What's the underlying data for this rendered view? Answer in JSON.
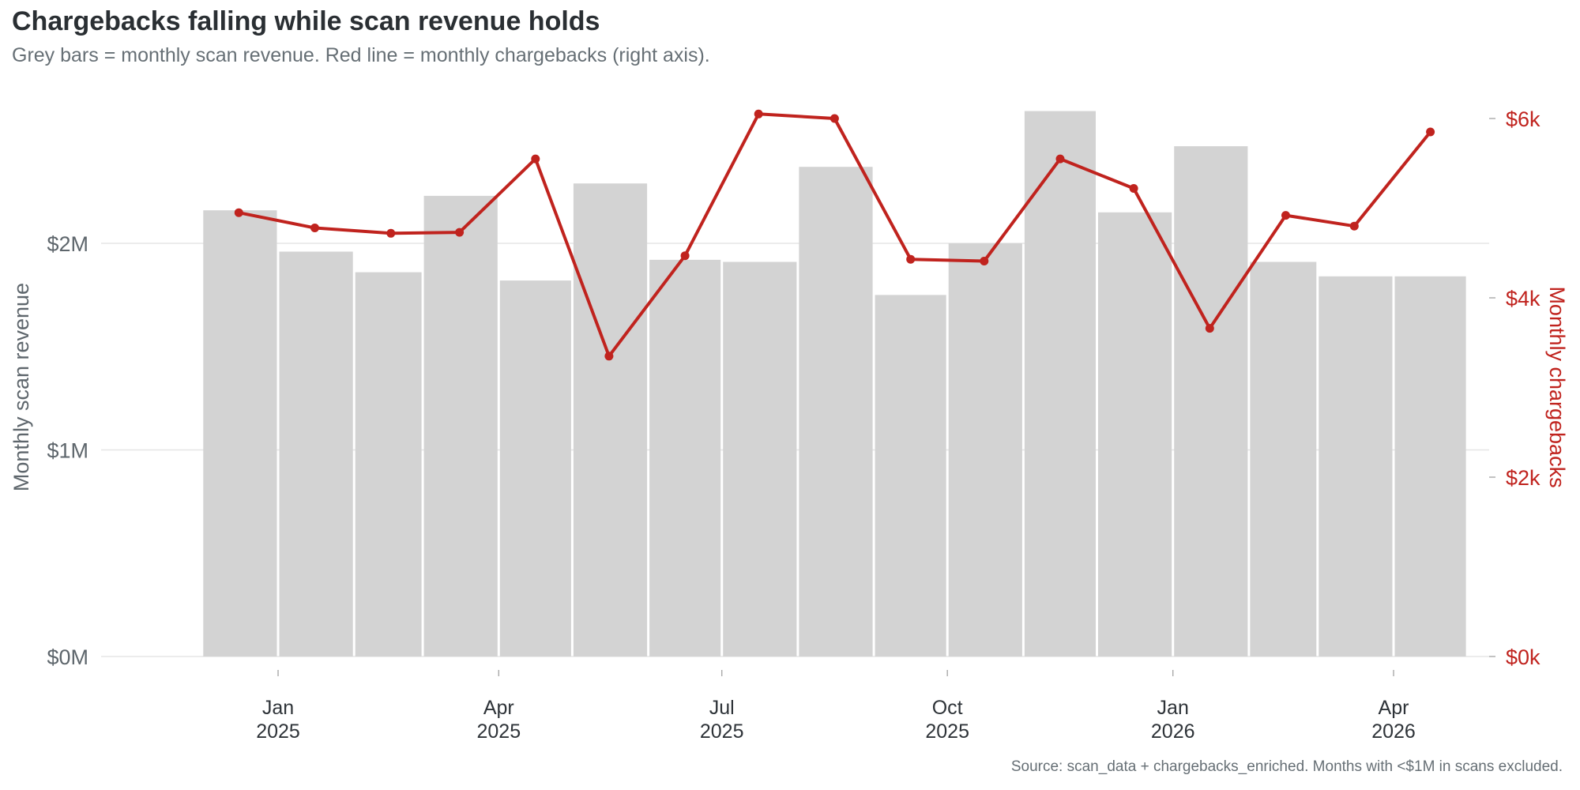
{
  "title": "Chargebacks falling while scan revenue holds",
  "subtitle": "Grey bars = monthly scan revenue. Red line = monthly chargebacks (right axis).",
  "caption": "Source: scan_data + chargebacks_enriched. Months with <$1M in scans excluded.",
  "colors": {
    "bars": "#d3d3d3",
    "line": "#c0231e",
    "grid": "#e6e6e6",
    "left_axis_text": "#5e666c",
    "right_axis_text": "#c0231e"
  },
  "chart_data": {
    "type": "bar+line",
    "months": [
      "2024-12",
      "2025-01",
      "2025-02",
      "2025-03",
      "2025-04",
      "2025-05",
      "2025-06",
      "2025-07",
      "2025-08",
      "2025-09",
      "2025-10",
      "2025-11",
      "2025-12",
      "2026-01",
      "2026-02",
      "2026-03",
      "2026-04"
    ],
    "series": [
      {
        "name": "Monthly scan revenue",
        "kind": "bar",
        "axis": "left",
        "unit": "$M",
        "values": [
          2.16,
          1.96,
          1.86,
          2.23,
          1.82,
          2.29,
          1.92,
          1.91,
          2.37,
          1.75,
          2.0,
          2.64,
          2.15,
          2.47,
          1.91,
          1.84,
          1.84
        ]
      },
      {
        "name": "Monthly chargebacks",
        "kind": "line",
        "axis": "right",
        "unit": "$k",
        "values": [
          4.95,
          4.78,
          4.72,
          4.73,
          5.55,
          3.35,
          4.47,
          6.05,
          6.0,
          4.43,
          4.41,
          5.55,
          5.22,
          3.66,
          4.92,
          4.8,
          5.85
        ]
      }
    ],
    "y_left": {
      "label": "Monthly scan revenue",
      "ticks": [
        "$0M",
        "$1M",
        "$2M"
      ],
      "tick_values": [
        0,
        1,
        2
      ],
      "range": [
        0,
        2.64
      ]
    },
    "y_right": {
      "label": "Monthly chargebacks",
      "ticks": [
        "$0k",
        "$2k",
        "$4k",
        "$6k"
      ],
      "tick_values": [
        0,
        2,
        4,
        6
      ],
      "range": [
        0,
        6.05
      ]
    },
    "x_ticks": [
      {
        "month": "2025-01",
        "line1": "Jan",
        "line2": "2025"
      },
      {
        "month": "2025-04",
        "line1": "Apr",
        "line2": "2025"
      },
      {
        "month": "2025-07",
        "line1": "Jul",
        "line2": "2025"
      },
      {
        "month": "2025-10",
        "line1": "Oct",
        "line2": "2025"
      },
      {
        "month": "2026-01",
        "line1": "Jan",
        "line2": "2026"
      },
      {
        "month": "2026-04",
        "line1": "Apr",
        "line2": "2026"
      }
    ],
    "grid": "horizontal",
    "legend": "none"
  }
}
